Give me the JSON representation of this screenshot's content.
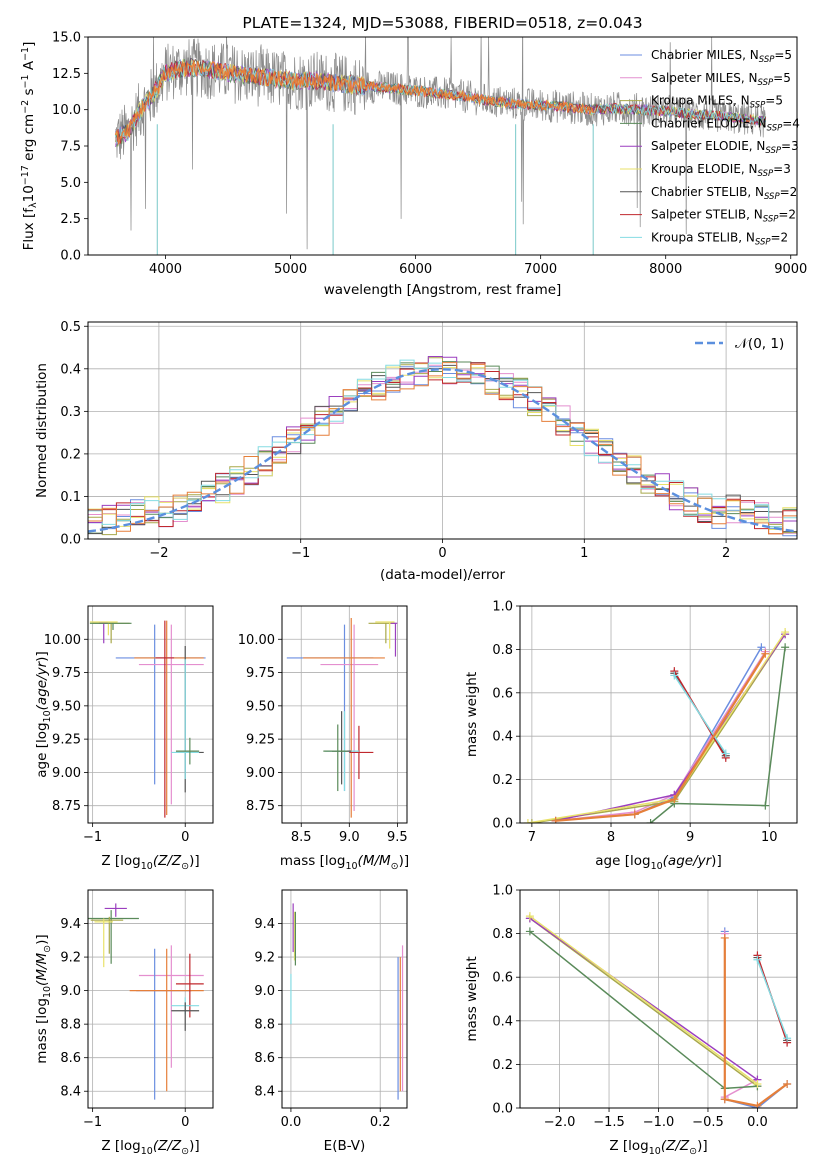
{
  "palette": {
    "Chabrier MILES": "#6b8ee0",
    "Salpeter MILES": "#e48fcf",
    "Kroupa MILES": "#a8a84a",
    "Chabrier ELODIE": "#5a8a5a",
    "Salpeter ELODIE": "#9b3fbf",
    "Kroupa ELODIE": "#e9e26a",
    "Chabrier STELIB": "#555555",
    "Salpeter STELIB": "#c0282e",
    "Kroupa STELIB": "#85dbe2",
    "data": "#8a8a8a",
    "fit": "#e57f3a",
    "gaussian": "#5b8fde"
  },
  "chart_data": [
    {
      "id": "spectrum",
      "type": "line",
      "title": "PLATE=1324, MJD=53088, FIBERID=0518, z=0.043",
      "xlabel": "wavelength [Angstrom, rest frame]",
      "ylabel": "Flux [f",
      "ylabel_parts": [
        "Flux [f",
        "λ",
        "10",
        "−17",
        " erg cm",
        "−2",
        " s",
        "−1",
        " A",
        "−1",
        "]"
      ],
      "xlim": [
        3380,
        9050
      ],
      "ylim": [
        0,
        15
      ],
      "xticks": [
        4000,
        5000,
        6000,
        7000,
        8000,
        9000
      ],
      "yticks": [
        0.0,
        2.5,
        5.0,
        7.5,
        10.0,
        12.5,
        15.0
      ],
      "xtick_labels": [
        "4000",
        "5000",
        "6000",
        "7000",
        "8000",
        "9000"
      ],
      "ytick_labels": [
        "0.0",
        "2.5",
        "5.0",
        "7.5",
        "10.0",
        "12.5",
        "15.0"
      ],
      "legend_position": "right",
      "legend": [
        {
          "name": "Chabrier MILES",
          "n": "5"
        },
        {
          "name": "Salpeter MILES",
          "n": "5"
        },
        {
          "name": "Kroupa MILES",
          "n": "5"
        },
        {
          "name": "Chabrier ELODIE",
          "n": "4"
        },
        {
          "name": "Salpeter ELODIE",
          "n": "3"
        },
        {
          "name": "Kroupa ELODIE",
          "n": "3"
        },
        {
          "name": "Chabrier STELIB",
          "n": "2"
        },
        {
          "name": "Salpeter STELIB",
          "n": "2"
        },
        {
          "name": "Kroupa STELIB",
          "n": "2"
        }
      ],
      "legend_suffix": ", N",
      "legend_sub": "SSP",
      "continuum": {
        "x": [
          3600,
          3700,
          3800,
          3900,
          4000,
          4100,
          4200,
          4400,
          4600,
          4800,
          5000,
          5200,
          5400,
          5600,
          5800,
          6000,
          6200,
          6400,
          6600,
          6800,
          7000,
          7200,
          7400,
          7600,
          7800,
          8000,
          8200,
          8400,
          8600,
          8800
        ],
        "y": [
          8.0,
          8.5,
          10.0,
          11.0,
          12.5,
          12.8,
          12.9,
          12.7,
          12.4,
          12.2,
          12.0,
          12.0,
          11.8,
          11.6,
          11.5,
          11.3,
          11.1,
          10.9,
          10.6,
          10.4,
          10.3,
          10.2,
          10.0,
          10.1,
          10.0,
          9.9,
          9.7,
          9.6,
          9.4,
          9.2
        ]
      },
      "fit_range": [
        3600,
        7420
      ],
      "model_range": [
        3600,
        8800
      ]
    },
    {
      "id": "residuals",
      "type": "line",
      "xlabel": "(data-model)/error",
      "ylabel": "Normed distribution",
      "xlim": [
        -2.5,
        2.5
      ],
      "ylim": [
        0,
        0.51
      ],
      "xticks": [
        -2,
        -1,
        0,
        1,
        2
      ],
      "yticks": [
        0.0,
        0.1,
        0.2,
        0.3,
        0.4,
        0.5
      ],
      "xtick_labels": [
        "−2",
        "−1",
        "0",
        "1",
        "2"
      ],
      "ytick_labels": [
        "0.0",
        "0.1",
        "0.2",
        "0.3",
        "0.4",
        "0.5"
      ],
      "grid": true,
      "legend": "𝒩(0, 1)",
      "legend_position": "top-right"
    },
    {
      "id": "age-vs-Z",
      "type": "scatter",
      "xlabel": "Z [log",
      "xlabel_tail": "(Z/Z",
      "ylabel": "age  [log",
      "ylabel_tail": "(age/yr)]",
      "xlim": [
        -1.05,
        0.3
      ],
      "ylim": [
        8.62,
        10.25
      ],
      "xticks": [
        -1,
        0
      ],
      "yticks": [
        8.75,
        9.0,
        9.25,
        9.5,
        9.75,
        10.0
      ],
      "xtick_labels": [
        "−1",
        "0"
      ],
      "ytick_labels": [
        "8.75",
        "9.00",
        "9.25",
        "9.50",
        "9.75",
        "10.00"
      ],
      "grid": true
    },
    {
      "id": "age-vs-mass",
      "type": "scatter",
      "xlabel": "mass [log",
      "xlabel_tail": "(M/M",
      "xlim": [
        8.3,
        9.6
      ],
      "ylim": [
        8.62,
        10.25
      ],
      "xticks": [
        8.5,
        9.0,
        9.5
      ],
      "yticks": [
        8.75,
        9.0,
        9.25,
        9.5,
        9.75,
        10.0
      ],
      "xtick_labels": [
        "8.5",
        "9.0",
        "9.5"
      ],
      "ytick_labels": [
        "8.75",
        "9.00",
        "9.25",
        "9.50",
        "9.75",
        "10.00"
      ],
      "grid": true
    },
    {
      "id": "weight-vs-age",
      "type": "line",
      "xlabel": "age  [log",
      "xlabel_tail": "(age/yr)]",
      "ylabel": "mass weight",
      "xlim": [
        6.85,
        10.35
      ],
      "ylim": [
        0,
        1
      ],
      "xticks": [
        7,
        8,
        9,
        10
      ],
      "yticks": [
        0.0,
        0.2,
        0.4,
        0.6,
        0.8,
        1.0
      ],
      "xtick_labels": [
        "7",
        "8",
        "9",
        "10"
      ],
      "ytick_labels": [
        "0.0",
        "0.2",
        "0.4",
        "0.6",
        "0.8",
        "1.0"
      ],
      "grid": true,
      "series": [
        {
          "name": "Chabrier MILES",
          "x": [
            7.3,
            8.3,
            8.8,
            9.9
          ],
          "y": [
            0.01,
            0.04,
            0.12,
            0.81
          ]
        },
        {
          "name": "Salpeter MILES",
          "x": [
            7.3,
            8.3,
            8.8,
            9.95
          ],
          "y": [
            0.01,
            0.05,
            0.13,
            0.79
          ]
        },
        {
          "name": "Kroupa MILES",
          "x": [
            7.0,
            8.8,
            10.2
          ],
          "y": [
            0.0,
            0.1,
            0.87
          ]
        },
        {
          "name": "Chabrier ELODIE",
          "x": [
            8.5,
            8.8,
            9.95,
            10.2
          ],
          "y": [
            0.0,
            0.09,
            0.08,
            0.81
          ]
        },
        {
          "name": "Salpeter ELODIE",
          "x": [
            7.3,
            8.8,
            10.2
          ],
          "y": [
            0.01,
            0.13,
            0.87
          ]
        },
        {
          "name": "Kroupa ELODIE",
          "x": [
            6.95,
            8.8,
            10.2
          ],
          "y": [
            0.0,
            0.11,
            0.88
          ]
        },
        {
          "name": "Chabrier STELIB",
          "x": [
            8.8,
            9.45
          ],
          "y": [
            0.69,
            0.31
          ]
        },
        {
          "name": "Salpeter STELIB",
          "x": [
            8.8,
            9.45
          ],
          "y": [
            0.7,
            0.3
          ]
        },
        {
          "name": "Kroupa STELIB",
          "x": [
            8.8,
            9.45
          ],
          "y": [
            0.68,
            0.32
          ]
        },
        {
          "name": "fit",
          "x": [
            7.3,
            8.3,
            8.8,
            9.95
          ],
          "y": [
            0.01,
            0.04,
            0.11,
            0.78
          ]
        }
      ]
    },
    {
      "id": "mass-vs-Z",
      "type": "scatter",
      "xlabel": "Z [log",
      "xlabel_tail": "(Z/Z",
      "ylabel": "mass [log",
      "ylabel_tail": "(M/M",
      "xlim": [
        -1.05,
        0.3
      ],
      "ylim": [
        8.3,
        9.6
      ],
      "xticks": [
        -1,
        0
      ],
      "yticks": [
        8.4,
        8.6,
        8.8,
        9.0,
        9.2,
        9.4
      ],
      "xtick_labels": [
        "−1",
        "0"
      ],
      "ytick_labels": [
        "8.4",
        "8.6",
        "8.8",
        "9.0",
        "9.2",
        "9.4"
      ],
      "grid": true
    },
    {
      "id": "mass-vs-EBV",
      "type": "scatter",
      "xlabel": "E(B-V)",
      "xlim": [
        -0.02,
        0.26
      ],
      "ylim": [
        8.3,
        9.6
      ],
      "xticks": [
        0.0,
        0.2
      ],
      "yticks": [
        8.4,
        8.6,
        8.8,
        9.0,
        9.2,
        9.4
      ],
      "xtick_labels": [
        "0.0",
        "0.2"
      ],
      "ytick_labels": [
        "8.4",
        "8.6",
        "8.8",
        "9.0",
        "9.2",
        "9.4"
      ],
      "grid": true
    },
    {
      "id": "weight-vs-Z",
      "type": "line",
      "xlabel": "Z [log",
      "xlabel_tail": "(Z/Z",
      "ylabel": "mass weight",
      "xlim": [
        -2.4,
        0.4
      ],
      "ylim": [
        0,
        1
      ],
      "xticks": [
        -2.0,
        -1.5,
        -1.0,
        -0.5,
        0.0
      ],
      "yticks": [
        0.0,
        0.2,
        0.4,
        0.6,
        0.8,
        1.0
      ],
      "xtick_labels": [
        "−2.0",
        "−1.5",
        "−1.0",
        "−0.5",
        "0.0"
      ],
      "ytick_labels": [
        "0.0",
        "0.2",
        "0.4",
        "0.6",
        "0.8",
        "1.0"
      ],
      "grid": true,
      "series": [
        {
          "name": "Chabrier MILES",
          "x": [
            -0.33,
            -0.33,
            0.0,
            0.3
          ],
          "y": [
            0.81,
            0.04,
            0.0,
            0.11
          ]
        },
        {
          "name": "Salpeter MILES",
          "x": [
            -0.33,
            -0.33,
            0.0
          ],
          "y": [
            0.8,
            0.05,
            0.13
          ]
        },
        {
          "name": "Kroupa MILES",
          "x": [
            -2.3,
            0.0
          ],
          "y": [
            0.87,
            0.1
          ]
        },
        {
          "name": "Chabrier ELODIE",
          "x": [
            -2.3,
            -0.33,
            0.0
          ],
          "y": [
            0.81,
            0.09,
            0.1
          ]
        },
        {
          "name": "Salpeter ELODIE",
          "x": [
            -2.3,
            0.0
          ],
          "y": [
            0.87,
            0.13
          ]
        },
        {
          "name": "Kroupa ELODIE",
          "x": [
            -2.3,
            0.0
          ],
          "y": [
            0.88,
            0.11
          ]
        },
        {
          "name": "Chabrier STELIB",
          "x": [
            0.0,
            0.3
          ],
          "y": [
            0.69,
            0.31
          ]
        },
        {
          "name": "Salpeter STELIB",
          "x": [
            0.0,
            0.3
          ],
          "y": [
            0.7,
            0.3
          ]
        },
        {
          "name": "Kroupa STELIB",
          "x": [
            0.0,
            0.3
          ],
          "y": [
            0.68,
            0.32
          ]
        },
        {
          "name": "fit",
          "x": [
            -0.33,
            -0.33,
            0.0,
            0.3
          ],
          "y": [
            0.78,
            0.04,
            0.01,
            0.11
          ]
        }
      ]
    }
  ],
  "crosses": {
    "age-vs-Z": [
      {
        "c": "Kroupa MILES",
        "x": -0.8,
        "y": 10.12,
        "dx": [
          -0.2,
          0.2
        ],
        "dy": [
          -0.15,
          0.0
        ]
      },
      {
        "c": "Salpeter ELODIE",
        "x": -0.88,
        "y": 10.12,
        "dx": [
          -0.05,
          0.05
        ],
        "dy": [
          -0.15,
          0.0
        ]
      },
      {
        "c": "Kroupa ELODIE",
        "x": -0.83,
        "y": 10.13,
        "dx": [
          -0.2,
          0.1
        ],
        "dy": [
          -0.1,
          0.0
        ]
      },
      {
        "c": "Chabrier ELODIE",
        "x": -0.78,
        "y": 10.12,
        "dx": [
          -0.25,
          0.2
        ],
        "dy": [
          -0.05,
          0.0
        ]
      },
      {
        "c": "Chabrier MILES",
        "x": -0.33,
        "y": 9.86,
        "dx": [
          -0.42,
          0.55
        ],
        "dy": [
          -0.95,
          0.25
        ]
      },
      {
        "c": "Salpeter MILES",
        "x": -0.15,
        "y": 9.81,
        "dx": [
          -0.35,
          0.35
        ],
        "dy": [
          -1.05,
          0.3
        ]
      },
      {
        "c": "fit",
        "x": -0.2,
        "y": 9.86,
        "dx": [
          -0.35,
          0.4
        ],
        "dy": [
          -1.18,
          0.28
        ]
      },
      {
        "c": "Salpeter STELIB",
        "x": -0.22,
        "y": 9.86,
        "dx": [
          -0.1,
          0.1
        ],
        "dy": [
          -1.2,
          0.28
        ]
      },
      {
        "c": "Chabrier STELIB",
        "x": 0.0,
        "y": 9.15,
        "dx": [
          -0.1,
          0.2
        ],
        "dy": [
          -0.3,
          0.8
        ]
      },
      {
        "c": "Kroupa STELIB",
        "x": 0.0,
        "y": 9.15,
        "dx": [
          -0.15,
          0.15
        ],
        "dy": [
          -0.2,
          0.7
        ]
      },
      {
        "c": "Chabrier ELODIE",
        "x": 0.05,
        "y": 9.16,
        "dx": [
          -0.15,
          0.1
        ],
        "dy": [
          -0.1,
          0.1
        ]
      }
    ],
    "age-vs-mass": [
      {
        "c": "Kroupa MILES",
        "x": 9.38,
        "y": 10.12,
        "dx": [
          -0.18,
          0.1
        ],
        "dy": [
          -0.15,
          0.0
        ]
      },
      {
        "c": "Salpeter ELODIE",
        "x": 9.48,
        "y": 10.12,
        "dx": [
          -0.05,
          0.02
        ],
        "dy": [
          -0.25,
          0.0
        ]
      },
      {
        "c": "Kroupa ELODIE",
        "x": 9.42,
        "y": 10.13,
        "dx": [
          -0.15,
          0.05
        ],
        "dy": [
          -0.2,
          0.0
        ]
      },
      {
        "c": "Chabrier MILES",
        "x": 8.95,
        "y": 9.86,
        "dx": [
          -0.6,
          0.3
        ],
        "dy": [
          -1.0,
          0.25
        ]
      },
      {
        "c": "Salpeter MILES",
        "x": 9.05,
        "y": 9.81,
        "dx": [
          -0.35,
          0.25
        ],
        "dy": [
          -1.1,
          0.3
        ]
      },
      {
        "c": "fit",
        "x": 9.02,
        "y": 9.86,
        "dx": [
          -0.5,
          0.35
        ],
        "dy": [
          -1.2,
          0.3
        ]
      },
      {
        "c": "Salpeter STELIB",
        "x": 9.1,
        "y": 9.15,
        "dx": [
          -0.1,
          0.15
        ],
        "dy": [
          -0.2,
          0.2
        ]
      },
      {
        "c": "Kroupa STELIB",
        "x": 8.95,
        "y": 9.16,
        "dx": [
          -0.2,
          0.15
        ],
        "dy": [
          -0.3,
          0.3
        ]
      },
      {
        "c": "Chabrier STELIB",
        "x": 8.92,
        "y": 9.16,
        "dx": [
          -0.1,
          0.1
        ],
        "dy": [
          -0.25,
          0.3
        ]
      },
      {
        "c": "Chabrier ELODIE",
        "x": 8.88,
        "y": 9.16,
        "dx": [
          -0.15,
          0.1
        ],
        "dy": [
          -0.3,
          0.2
        ]
      }
    ],
    "mass-vs-Z": [
      {
        "c": "Salpeter ELODIE",
        "x": -0.75,
        "y": 9.49,
        "dx": [
          -0.12,
          0.12
        ],
        "dy": [
          -0.05,
          0.03
        ]
      },
      {
        "c": "Chabrier ELODIE",
        "x": -0.8,
        "y": 9.43,
        "dx": [
          -0.25,
          0.3
        ],
        "dy": [
          -0.27,
          0.05
        ]
      },
      {
        "c": "Kroupa MILES",
        "x": -0.82,
        "y": 9.42,
        "dx": [
          -0.2,
          0.15
        ],
        "dy": [
          -0.2,
          0.02
        ]
      },
      {
        "c": "Kroupa ELODIE",
        "x": -0.88,
        "y": 9.41,
        "dx": [
          -0.1,
          0.1
        ],
        "dy": [
          -0.27,
          0.02
        ]
      },
      {
        "c": "Salpeter MILES",
        "x": -0.15,
        "y": 9.09,
        "dx": [
          -0.35,
          0.35
        ],
        "dy": [
          -0.55,
          0.18
        ]
      },
      {
        "c": "Chabrier MILES",
        "x": -0.33,
        "y": 9.0,
        "dx": [
          -0.2,
          0.4
        ],
        "dy": [
          -0.65,
          0.25
        ]
      },
      {
        "c": "fit",
        "x": -0.2,
        "y": 9.0,
        "dx": [
          -0.4,
          0.4
        ],
        "dy": [
          -0.6,
          0.25
        ]
      },
      {
        "c": "Salpeter STELIB",
        "x": 0.05,
        "y": 9.04,
        "dx": [
          -0.15,
          0.15
        ],
        "dy": [
          -0.2,
          0.18
        ]
      },
      {
        "c": "Kroupa STELIB",
        "x": 0.0,
        "y": 8.91,
        "dx": [
          -0.15,
          0.15
        ],
        "dy": [
          -0.05,
          0.05
        ]
      },
      {
        "c": "Chabrier STELIB",
        "x": 0.0,
        "y": 8.88,
        "dx": [
          -0.15,
          0.15
        ],
        "dy": [
          -0.12,
          0.05
        ]
      }
    ],
    "mass-vs-EBV": [
      {
        "c": "Salpeter ELODIE",
        "x": 0.005,
        "y": 9.45,
        "dx": [
          0,
          0
        ],
        "dy": [
          -0.22,
          0.07
        ]
      },
      {
        "c": "Kroupa ELODIE",
        "x": 0.008,
        "y": 9.4,
        "dx": [
          0,
          0
        ],
        "dy": [
          -0.22,
          0.07
        ]
      },
      {
        "c": "Chabrier ELODIE",
        "x": 0.01,
        "y": 9.42,
        "dx": [
          0,
          0
        ],
        "dy": [
          -0.27,
          0.05
        ]
      },
      {
        "c": "Kroupa STELIB",
        "x": 0.0,
        "y": 8.9,
        "dx": [
          0,
          0
        ],
        "dy": [
          -0.1,
          0.2
        ]
      },
      {
        "c": "Chabrier MILES",
        "x": 0.24,
        "y": 8.9,
        "dx": [
          0,
          0
        ],
        "dy": [
          -0.55,
          0.3
        ]
      },
      {
        "c": "fit",
        "x": 0.245,
        "y": 8.8,
        "dx": [
          0,
          0
        ],
        "dy": [
          -0.4,
          0.4
        ]
      },
      {
        "c": "Salpeter MILES",
        "x": 0.25,
        "y": 8.8,
        "dx": [
          0,
          0
        ],
        "dy": [
          -0.4,
          0.47
        ]
      }
    ]
  }
}
